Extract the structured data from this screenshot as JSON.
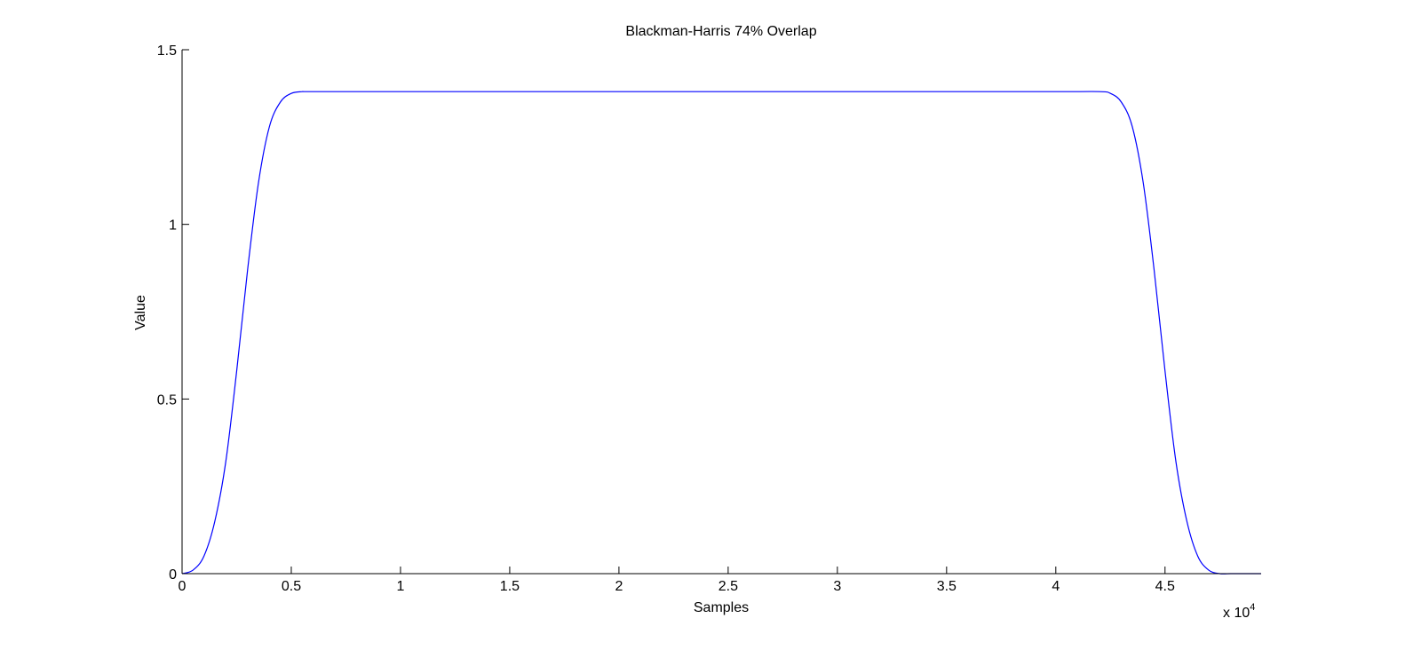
{
  "chart_data": {
    "type": "line",
    "title": "Blackman-Harris 74% Overlap",
    "xlabel": "Samples",
    "ylabel": "Value",
    "xlim": [
      0,
      49400
    ],
    "ylim": [
      0,
      1.5
    ],
    "x_ticks": [
      0,
      5000,
      10000,
      15000,
      20000,
      25000,
      30000,
      35000,
      40000,
      45000
    ],
    "x_tick_labels": [
      "0",
      "0.5",
      "1",
      "1.5",
      "2",
      "2.5",
      "3",
      "3.5",
      "4",
      "4.5"
    ],
    "y_ticks": [
      0,
      0.5,
      1,
      1.5
    ],
    "y_tick_labels": [
      "0",
      "0.5",
      "1",
      "1.5"
    ],
    "x_multiplier": {
      "base": "x 10",
      "exponent": "4"
    },
    "grid": false,
    "series": [
      {
        "color": "#0000ff",
        "x": [
          0,
          500,
          1000,
          1500,
          2000,
          2500,
          3000,
          3500,
          4000,
          4500,
          5000,
          5500,
          6000,
          10000,
          20000,
          30000,
          40000,
          42000,
          42500,
          43000,
          43500,
          44000,
          44500,
          45000,
          45500,
          46000,
          46500,
          47000,
          47500,
          48000,
          48500,
          49400
        ],
        "y": [
          0.0,
          0.01,
          0.05,
          0.15,
          0.32,
          0.58,
          0.87,
          1.12,
          1.28,
          1.35,
          1.375,
          1.38,
          1.38,
          1.38,
          1.38,
          1.38,
          1.38,
          1.38,
          1.375,
          1.35,
          1.28,
          1.12,
          0.87,
          0.58,
          0.32,
          0.15,
          0.05,
          0.01,
          0.0,
          0.0,
          0.0,
          0.0
        ]
      }
    ]
  }
}
